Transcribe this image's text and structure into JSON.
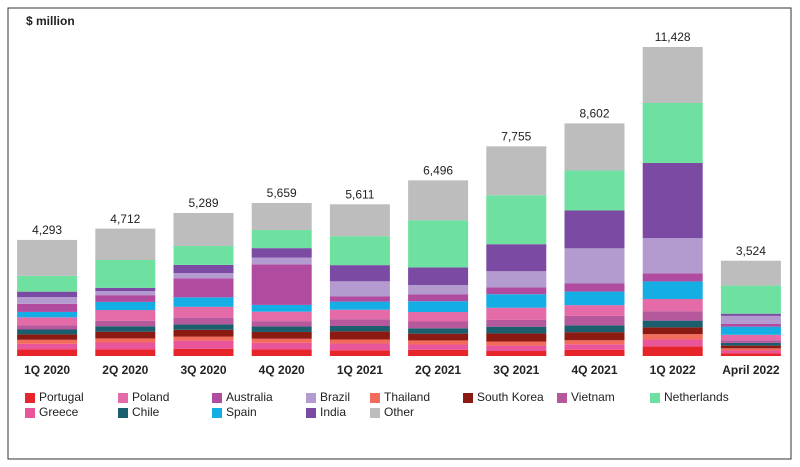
{
  "chart_data": {
    "type": "stacked-bar",
    "title": "$ million",
    "categories": [
      "1Q 2020",
      "2Q 2020",
      "3Q 2020",
      "4Q 2020",
      "1Q 2021",
      "2Q 2021",
      "3Q 2021",
      "4Q 2021",
      "1Q 2022",
      "April 2022"
    ],
    "totals": [
      4293,
      4712,
      5289,
      5659,
      5611,
      6496,
      7755,
      8602,
      11428,
      3524
    ],
    "value_labels": [
      "4,293",
      "4,712",
      "5,289",
      "5,659",
      "5,611",
      "6,496",
      "7,755",
      "8,602",
      "11,428",
      "3,524"
    ],
    "series": [
      {
        "name": "Portugal",
        "color": "#e8242b",
        "values": [
          250,
          250,
          269,
          239,
          211,
          226,
          185,
          232,
          358,
          104
        ]
      },
      {
        "name": "Greece",
        "color": "#e9559a",
        "values": [
          200,
          250,
          300,
          250,
          250,
          200,
          200,
          200,
          250,
          100
        ]
      },
      {
        "name": "Thailand",
        "color": "#f26b5b",
        "values": [
          150,
          150,
          150,
          150,
          150,
          150,
          150,
          150,
          200,
          80
        ]
      },
      {
        "name": "South Korea",
        "color": "#8b1a12",
        "values": [
          200,
          250,
          250,
          250,
          300,
          250,
          300,
          300,
          250,
          100
        ]
      },
      {
        "name": "Chile",
        "color": "#1b5e6e",
        "values": [
          180,
          200,
          200,
          200,
          200,
          200,
          250,
          250,
          250,
          100
        ]
      },
      {
        "name": "Vietnam",
        "color": "#b5589c",
        "values": [
          150,
          200,
          250,
          200,
          250,
          250,
          250,
          350,
          350,
          100
        ]
      },
      {
        "name": "Poland",
        "color": "#e46aa8",
        "values": [
          300,
          400,
          400,
          350,
          350,
          350,
          450,
          400,
          450,
          200
        ]
      },
      {
        "name": "Spain",
        "color": "#14aee5",
        "values": [
          200,
          300,
          350,
          250,
          300,
          400,
          500,
          500,
          650,
          300
        ]
      },
      {
        "name": "Australia",
        "color": "#b04ba0",
        "values": [
          300,
          250,
          700,
          1500,
          200,
          250,
          250,
          300,
          300,
          100
        ]
      },
      {
        "name": "Brazil",
        "color": "#b39bd0",
        "values": [
          250,
          150,
          200,
          250,
          550,
          350,
          600,
          1300,
          1300,
          300
        ]
      },
      {
        "name": "India",
        "color": "#7b4ba3",
        "values": [
          200,
          120,
          300,
          350,
          600,
          650,
          1000,
          1400,
          2780,
          80
        ]
      },
      {
        "name": "Netherlands",
        "color": "#6ee0a0",
        "values": [
          583,
          1030,
          700,
          670,
          1070,
          1740,
          1810,
          1480,
          2220,
          1040
        ]
      },
      {
        "name": "Other",
        "color": "#bdbdbd",
        "values": [
          1330,
          1162,
          1220,
          1000,
          1180,
          1480,
          1810,
          1740,
          2070,
          920
        ]
      }
    ]
  }
}
